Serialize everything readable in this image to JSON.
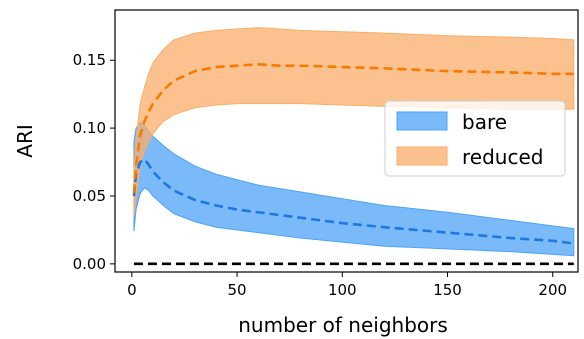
{
  "chart_data": {
    "type": "line",
    "title": "",
    "xlabel": "number of neighbors",
    "ylabel": "ARI",
    "xlim": [
      -8,
      212
    ],
    "ylim": [
      -0.006,
      0.187
    ],
    "xticks": [
      0,
      50,
      100,
      150,
      200
    ],
    "xtick_labels": [
      "0",
      "50",
      "100",
      "150",
      "200"
    ],
    "yticks": [
      0.0,
      0.05,
      0.1,
      0.15
    ],
    "ytick_labels": [
      "0.00",
      "0.05",
      "0.10",
      "0.15"
    ],
    "grid": false,
    "legend_position": "center-right",
    "baseline": {
      "x": [
        1,
        210
      ],
      "y": 0.0,
      "color": "#000000",
      "style": "dashed"
    },
    "series": [
      {
        "name": "bare",
        "mean_color": "#1f77e4",
        "fill_color": "#4da3f5",
        "x": [
          1,
          2,
          4,
          6,
          8,
          10,
          15,
          20,
          30,
          40,
          50,
          60,
          80,
          100,
          120,
          150,
          180,
          200,
          210
        ],
        "mean": [
          0.05,
          0.066,
          0.075,
          0.077,
          0.073,
          0.068,
          0.06,
          0.054,
          0.047,
          0.043,
          0.04,
          0.038,
          0.034,
          0.03,
          0.027,
          0.023,
          0.019,
          0.017,
          0.015
        ],
        "lower": [
          0.024,
          0.04,
          0.052,
          0.056,
          0.054,
          0.05,
          0.043,
          0.037,
          0.031,
          0.027,
          0.025,
          0.023,
          0.019,
          0.016,
          0.013,
          0.011,
          0.009,
          0.007,
          0.006
        ],
        "upper": [
          0.09,
          0.1,
          0.104,
          0.102,
          0.098,
          0.094,
          0.087,
          0.081,
          0.072,
          0.066,
          0.062,
          0.058,
          0.053,
          0.048,
          0.043,
          0.038,
          0.032,
          0.028,
          0.026
        ]
      },
      {
        "name": "reduced",
        "mean_color": "#f57c00",
        "fill_color": "#f9ae6a",
        "x": [
          1,
          2,
          4,
          6,
          8,
          10,
          15,
          20,
          30,
          40,
          50,
          60,
          70,
          80,
          100,
          120,
          150,
          180,
          200,
          210
        ],
        "mean": [
          0.052,
          0.072,
          0.095,
          0.105,
          0.112,
          0.118,
          0.128,
          0.135,
          0.142,
          0.145,
          0.146,
          0.147,
          0.146,
          0.146,
          0.145,
          0.144,
          0.142,
          0.141,
          0.14,
          0.14
        ],
        "lower": [
          0.035,
          0.05,
          0.072,
          0.083,
          0.09,
          0.096,
          0.105,
          0.11,
          0.115,
          0.117,
          0.118,
          0.118,
          0.118,
          0.118,
          0.117,
          0.116,
          0.115,
          0.114,
          0.114,
          0.114
        ],
        "upper": [
          0.07,
          0.092,
          0.118,
          0.13,
          0.14,
          0.148,
          0.158,
          0.165,
          0.17,
          0.172,
          0.173,
          0.174,
          0.173,
          0.172,
          0.171,
          0.17,
          0.168,
          0.167,
          0.166,
          0.165
        ]
      }
    ]
  }
}
